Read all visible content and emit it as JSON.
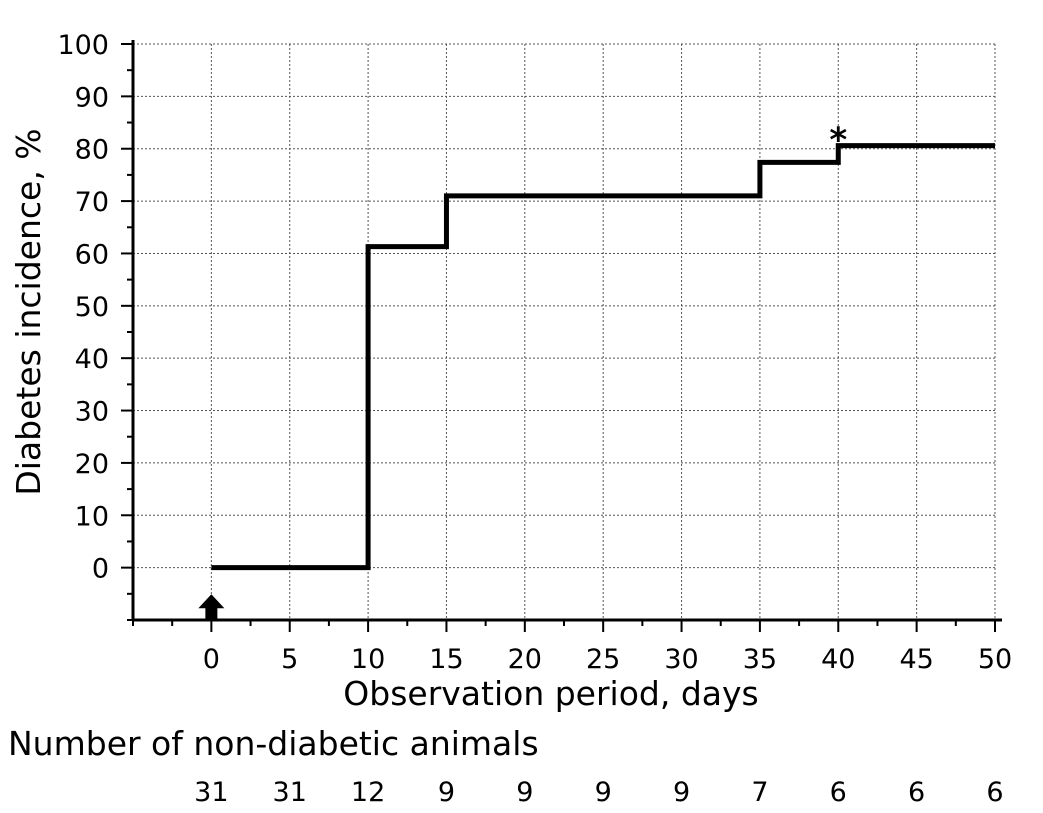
{
  "chart_data": {
    "type": "line",
    "step": true,
    "xlabel": "Observation period, days",
    "ylabel": "Diabetes incidence, %",
    "x_ticks": [
      0,
      5,
      10,
      15,
      20,
      25,
      30,
      35,
      40,
      45,
      50
    ],
    "y_ticks": [
      0,
      10,
      20,
      30,
      40,
      50,
      60,
      70,
      80,
      90,
      100
    ],
    "xlim": [
      -5,
      50
    ],
    "ylim": [
      -10,
      100
    ],
    "grid": true,
    "series": [
      {
        "x": [
          0,
          10,
          10,
          15,
          15,
          35,
          35,
          40,
          40,
          50
        ],
        "y": [
          0,
          0,
          61.3,
          61.3,
          71.0,
          71.0,
          77.4,
          77.4,
          80.6,
          80.6
        ]
      }
    ],
    "annotations": [
      {
        "text": "*",
        "x": 40,
        "y": 80.6
      },
      {
        "symbol": "up-arrow",
        "x": 0,
        "y": -7
      }
    ],
    "risk_table": {
      "title": "Number of non-diabetic animals",
      "values": [
        "31",
        "31",
        "12",
        "9",
        "9",
        "9",
        "9",
        "7",
        "6",
        "6",
        "6"
      ]
    }
  }
}
